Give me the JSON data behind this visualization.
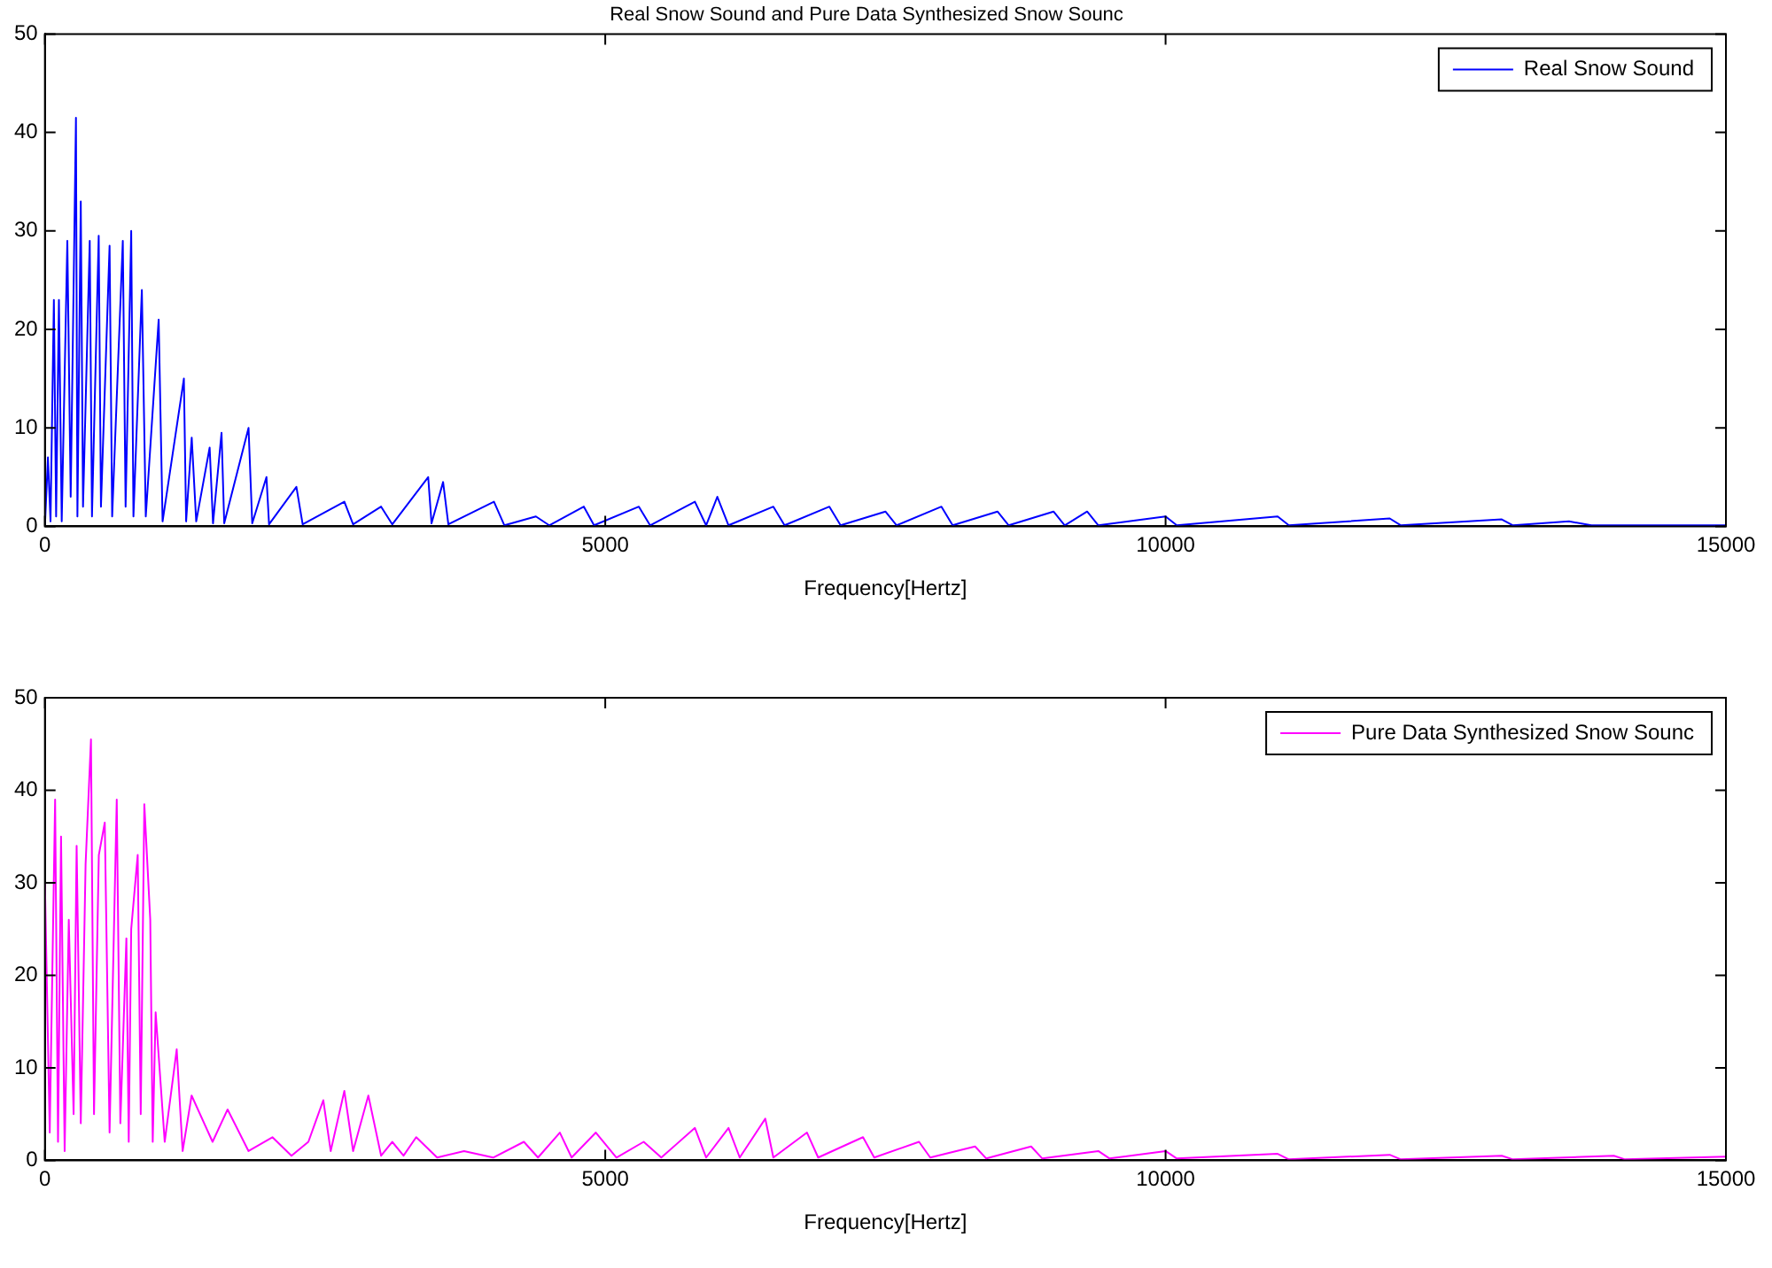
{
  "chart_data": [
    {
      "type": "line",
      "title": "Real Snow Sound and Pure Data Synthesized Snow Sounc",
      "xlabel": "Frequency[Hertz]",
      "xlim": [
        0,
        15000
      ],
      "xticks": [
        0,
        5000,
        10000,
        15000
      ],
      "ylim": [
        0,
        50
      ],
      "yticks": [
        0,
        10,
        20,
        30,
        40,
        50
      ],
      "legend": "top right",
      "series": [
        {
          "name": "Real Snow Sound",
          "color": "#0000ff",
          "x": [
            0,
            27,
            50,
            80,
            100,
            125,
            150,
            200,
            230,
            277,
            290,
            320,
            340,
            400,
            420,
            480,
            500,
            577,
            600,
            695,
            720,
            770,
            790,
            865,
            900,
            1015,
            1050,
            1240,
            1260,
            1310,
            1350,
            1470,
            1500,
            1576,
            1600,
            1817,
            1850,
            1977,
            2000,
            2244,
            2300,
            2672,
            2750,
            3000,
            3100,
            3420,
            3450,
            3553,
            3600,
            4007,
            4100,
            4381,
            4500,
            4809,
            4900,
            5300,
            5400,
            5800,
            5900,
            6000,
            6100,
            6500,
            6600,
            7000,
            7100,
            7500,
            7600,
            8000,
            8100,
            8500,
            8600,
            9000,
            9100,
            9300,
            9400,
            10000,
            10100,
            11000,
            11100,
            12000,
            12100,
            13000,
            13100,
            13600,
            13800,
            15000
          ],
          "values": [
            0,
            7,
            0.5,
            23,
            1,
            23,
            0.5,
            29,
            3,
            41.5,
            1,
            33,
            2,
            29,
            1,
            29.5,
            2,
            28.5,
            1,
            29,
            2,
            30,
            1,
            24,
            1,
            21,
            0.5,
            15,
            0.5,
            9,
            0.5,
            8,
            0.3,
            9.5,
            0.3,
            10,
            0.3,
            5,
            0.2,
            4,
            0.2,
            2.5,
            0.2,
            2,
            0.2,
            5,
            0.3,
            4.5,
            0.2,
            2.5,
            0.1,
            1,
            0.1,
            2,
            0.1,
            2,
            0.1,
            2.5,
            0.1,
            3,
            0.1,
            2,
            0.1,
            2,
            0.1,
            1.5,
            0.1,
            2,
            0.1,
            1.5,
            0.1,
            1.5,
            0.1,
            1.5,
            0.1,
            1,
            0.1,
            1,
            0.1,
            0.8,
            0.1,
            0.7,
            0.1,
            0.5,
            0.1,
            0.1
          ]
        }
      ]
    },
    {
      "type": "line",
      "xlabel": "Frequency[Hertz]",
      "xlim": [
        0,
        15000
      ],
      "xticks": [
        0,
        5000,
        10000,
        15000
      ],
      "ylim": [
        0,
        50
      ],
      "yticks": [
        0,
        10,
        20,
        30,
        40,
        50
      ],
      "legend": "top right",
      "series": [
        {
          "name": "Pure Data Synthesized Snow Sounc",
          "color": "#ff00ff",
          "x": [
            0,
            43,
            91,
            117,
            144,
            176,
            213,
            256,
            283,
            320,
            363,
            411,
            438,
            481,
            534,
            577,
            641,
            673,
            727,
            748,
            770,
            828,
            855,
            887,
            940,
            962,
            988,
            1069,
            1176,
            1229,
            1309,
            1496,
            1630,
            1817,
            2030,
            2200,
            2351,
            2484,
            2550,
            2672,
            2750,
            2886,
            3000,
            3099,
            3200,
            3313,
            3500,
            3740,
            4000,
            4274,
            4400,
            4595,
            4700,
            4916,
            5100,
            5343,
            5500,
            5800,
            5900,
            6100,
            6200,
            6428,
            6500,
            6800,
            6900,
            7300,
            7400,
            7800,
            7900,
            8300,
            8400,
            8800,
            8900,
            9400,
            9500,
            10000,
            10100,
            11000,
            11100,
            12000,
            12100,
            13000,
            13100,
            14000,
            14100,
            15000
          ],
          "values": [
            30,
            3,
            39,
            2,
            35,
            1,
            26,
            5,
            34,
            4,
            32,
            45.5,
            5,
            33,
            36.5,
            3,
            39,
            4,
            24,
            2,
            25,
            33,
            5,
            38.5,
            26,
            2,
            16,
            2,
            12,
            1,
            7,
            2,
            5.5,
            1,
            2.5,
            0.5,
            2,
            6.5,
            1,
            7.5,
            1,
            7,
            0.5,
            2,
            0.5,
            2.5,
            0.3,
            1,
            0.3,
            2,
            0.3,
            3,
            0.3,
            3,
            0.3,
            2,
            0.3,
            3.5,
            0.3,
            3.5,
            0.3,
            4.5,
            0.3,
            3,
            0.3,
            2.5,
            0.3,
            2,
            0.3,
            1.5,
            0.2,
            1.5,
            0.2,
            1,
            0.2,
            1,
            0.2,
            0.7,
            0.1,
            0.6,
            0.1,
            0.5,
            0.1,
            0.5,
            0.1,
            0.4
          ]
        }
      ]
    }
  ]
}
